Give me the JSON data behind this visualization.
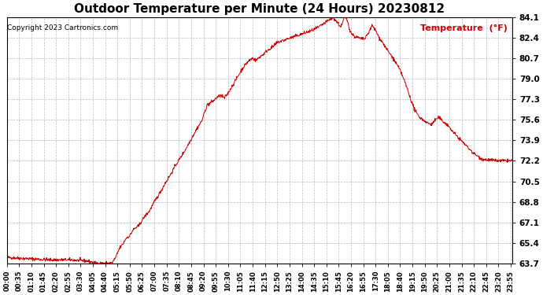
{
  "title": "Outdoor Temperature per Minute (24 Hours) 20230812",
  "copyright_text": "Copyright 2023 Cartronics.com",
  "legend_label": "Temperature  (°F)",
  "line_color": "#cc0000",
  "background_color": "#ffffff",
  "grid_color": "#aaaaaa",
  "yticks": [
    63.7,
    65.4,
    67.1,
    68.8,
    70.5,
    72.2,
    73.9,
    75.6,
    77.3,
    79.0,
    80.7,
    82.4,
    84.1
  ],
  "ylim": [
    63.7,
    84.1
  ],
  "xlim": [
    0,
    1439
  ],
  "xtick_step": 35,
  "title_fontsize": 11,
  "copyright_fontsize": 6.5,
  "legend_fontsize": 8,
  "ytick_fontsize": 7.5,
  "xtick_fontsize": 6
}
